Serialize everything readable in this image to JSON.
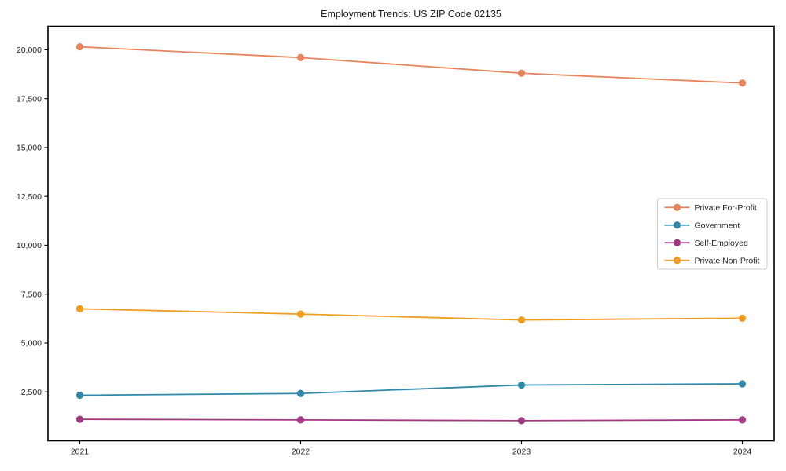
{
  "figure": {
    "title": "Employment Trends: US ZIP Code 02135"
  },
  "chart_data": {
    "type": "line",
    "title": "Employment Trends: US ZIP Code 02135",
    "xlabel": "",
    "ylabel": "",
    "categories": [
      "2021",
      "2022",
      "2023",
      "2024"
    ],
    "series": [
      {
        "name": "Private For-Profit",
        "color": "#e8845c",
        "values": [
          20150,
          19600,
          18800,
          18300
        ]
      },
      {
        "name": "Government",
        "color": "#3087a8",
        "values": [
          2330,
          2420,
          2850,
          2910
        ]
      },
      {
        "name": "Self-Employed",
        "color": "#a23882",
        "values": [
          1100,
          1070,
          1030,
          1070
        ]
      },
      {
        "name": "Private Non-Profit",
        "color": "#f09c20",
        "values": [
          6750,
          6480,
          6180,
          6270
        ]
      }
    ],
    "ylim": [
      0,
      21200
    ],
    "yticks": [
      2500,
      5000,
      7500,
      10000,
      12500,
      15000,
      17500,
      20000
    ],
    "grid": false,
    "marker": "circle",
    "legend": {
      "position": "right-middle",
      "entries": [
        "Private For-Profit",
        "Government",
        "Self-Employed",
        "Private Non-Profit"
      ]
    },
    "colors": {
      "text": "#222222",
      "axis": "#000000",
      "legend_border": "#cccccc",
      "background": "#ffffff"
    }
  }
}
